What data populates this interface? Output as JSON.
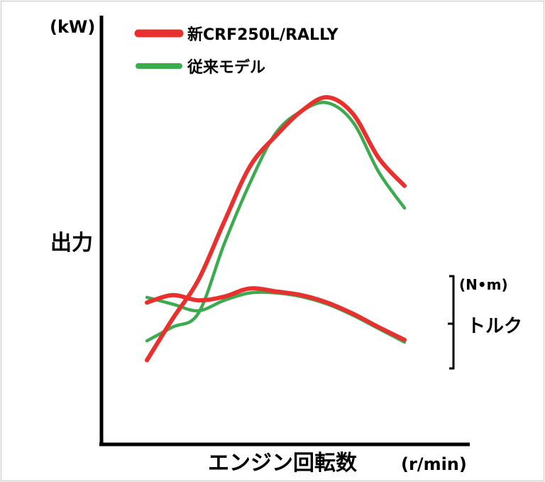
{
  "chart_data": {
    "type": "line",
    "units": {
      "y_left": "(kW)",
      "x": "(r/min)",
      "y_right": "(N•m)"
    },
    "ylabel": "出力",
    "xlabel": "エンジン回転数",
    "torque_label": "トルク",
    "grid": false,
    "legend_placement": "top-left",
    "legend": [
      {
        "name": "新CRF250L/RALLY",
        "color": "#e8302e"
      },
      {
        "name": "従来モデル",
        "color": "#3cab4f"
      }
    ],
    "x": [
      0,
      0.1,
      0.2,
      0.3,
      0.4,
      0.5,
      0.6,
      0.7,
      0.8,
      0.9,
      1.0
    ],
    "series": [
      {
        "name": "新CRF250L/RALLY",
        "metric": "出力",
        "color": "#e8302e",
        "values": [
          0.05,
          0.2,
          0.34,
          0.55,
          0.75,
          0.86,
          0.95,
          1.0,
          0.94,
          0.78,
          0.68
        ]
      },
      {
        "name": "従来モデル",
        "metric": "出力",
        "color": "#3cab4f",
        "values": [
          0.12,
          0.17,
          0.22,
          0.47,
          0.69,
          0.87,
          0.95,
          0.98,
          0.91,
          0.73,
          0.6
        ]
      },
      {
        "name": "新CRF250L/RALLY",
        "metric": "トルク",
        "color": "#e8302e",
        "values": [
          0.75,
          0.85,
          0.78,
          0.83,
          0.94,
          0.9,
          0.85,
          0.75,
          0.6,
          0.42,
          0.25
        ]
      },
      {
        "name": "従来モデル",
        "metric": "トルク",
        "color": "#3cab4f",
        "values": [
          0.82,
          0.73,
          0.64,
          0.78,
          0.88,
          0.88,
          0.83,
          0.73,
          0.58,
          0.4,
          0.22
        ]
      }
    ]
  }
}
